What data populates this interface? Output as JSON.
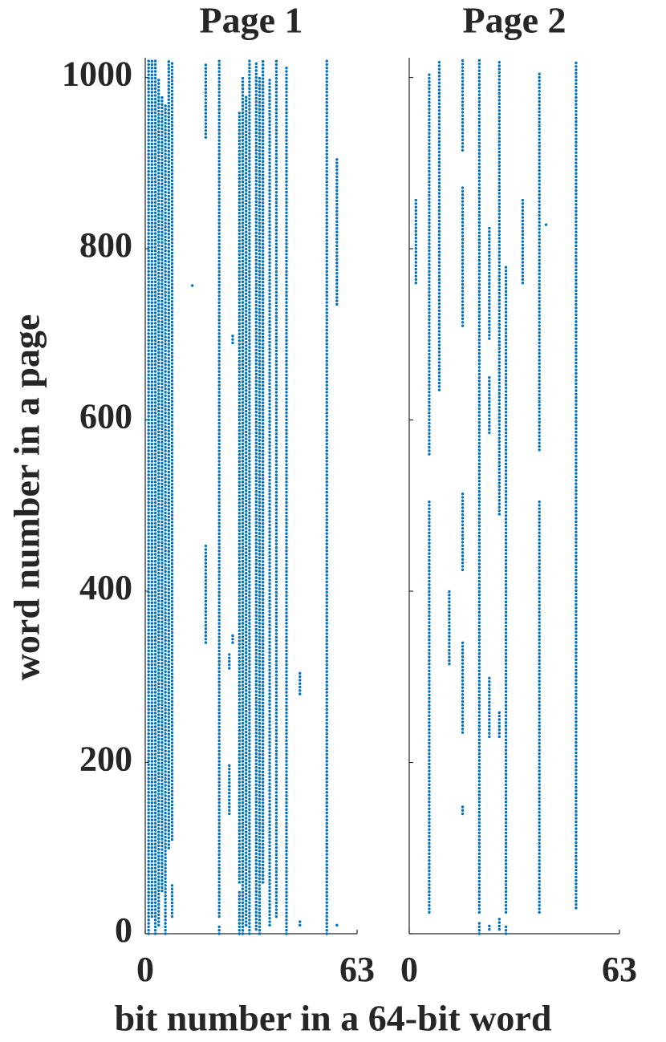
{
  "chart_data": [
    {
      "type": "scatter",
      "title": "Page 1",
      "ylabel": "word number in a page",
      "xlabel": "bit number in a 64-bit word",
      "color": "#0072bd",
      "xlim": [
        0,
        63
      ],
      "ylim": [
        0,
        1023
      ],
      "xticks": [
        0,
        63
      ],
      "yticks": [
        0,
        200,
        400,
        600,
        800,
        1000
      ],
      "ytick_labels": true,
      "columns": [
        {
          "bit": 1,
          "runs": [
            [
              0,
              1020
            ]
          ]
        },
        {
          "bit": 2,
          "runs": [
            [
              20,
              1020
            ]
          ]
        },
        {
          "bit": 3,
          "runs": [
            [
              0,
              1020
            ]
          ]
        },
        {
          "bit": 4,
          "runs": [
            [
              10,
              1000
            ]
          ]
        },
        {
          "bit": 5,
          "runs": [
            [
              50,
              980
            ]
          ]
        },
        {
          "bit": 6,
          "runs": [
            [
              0,
              970
            ]
          ]
        },
        {
          "bit": 7,
          "runs": [
            [
              100,
              1020
            ]
          ]
        },
        {
          "bit": 8,
          "runs": [
            [
              20,
              60
            ],
            [
              110,
              1020
            ]
          ]
        },
        {
          "bit": 14,
          "runs": [
            [
              757,
              757
            ]
          ]
        },
        {
          "bit": 18,
          "runs": [
            [
              340,
              455
            ],
            [
              930,
              1015
            ]
          ]
        },
        {
          "bit": 22,
          "runs": [
            [
              0,
              10
            ],
            [
              20,
              1020
            ]
          ]
        },
        {
          "bit": 25,
          "runs": [
            [
              140,
              200
            ],
            [
              310,
              330
            ]
          ]
        },
        {
          "bit": 26,
          "runs": [
            [
              340,
              350
            ],
            [
              690,
              700
            ]
          ]
        },
        {
          "bit": 28,
          "runs": [
            [
              0,
              50
            ],
            [
              60,
              960
            ]
          ]
        },
        {
          "bit": 29,
          "runs": [
            [
              0,
              1000
            ]
          ]
        },
        {
          "bit": 30,
          "runs": [
            [
              10,
              980
            ]
          ]
        },
        {
          "bit": 31,
          "runs": [
            [
              0,
              1020
            ]
          ]
        },
        {
          "bit": 33,
          "runs": [
            [
              5,
              1020
            ]
          ]
        },
        {
          "bit": 34,
          "runs": [
            [
              0,
              1000
            ]
          ]
        },
        {
          "bit": 35,
          "runs": [
            [
              60,
              1020
            ]
          ]
        },
        {
          "bit": 37,
          "runs": [
            [
              10,
              1000
            ]
          ]
        },
        {
          "bit": 39,
          "runs": [
            [
              20,
              1020
            ]
          ]
        },
        {
          "bit": 42,
          "runs": [
            [
              0,
              1015
            ]
          ]
        },
        {
          "bit": 46,
          "runs": [
            [
              10,
              15
            ],
            [
              280,
              305
            ]
          ]
        },
        {
          "bit": 54,
          "runs": [
            [
              0,
              1020
            ]
          ]
        },
        {
          "bit": 57,
          "runs": [
            [
              10,
              10
            ],
            [
              735,
              905
            ]
          ]
        }
      ]
    },
    {
      "type": "scatter",
      "title": "Page 2",
      "color": "#0072bd",
      "xlim": [
        0,
        63
      ],
      "ylim": [
        0,
        1023
      ],
      "xticks": [
        0,
        63
      ],
      "yticks": [
        0,
        200,
        400,
        600,
        800,
        1000
      ],
      "ytick_labels": false,
      "columns": [
        {
          "bit": 2,
          "runs": [
            [
              760,
              860
            ]
          ]
        },
        {
          "bit": 6,
          "runs": [
            [
              25,
              505
            ],
            [
              560,
              1005
            ]
          ]
        },
        {
          "bit": 9,
          "runs": [
            [
              635,
              1020
            ]
          ]
        },
        {
          "bit": 12,
          "runs": [
            [
              315,
              400
            ]
          ]
        },
        {
          "bit": 16,
          "runs": [
            [
              140,
              150
            ],
            [
              235,
              340
            ],
            [
              425,
              515
            ],
            [
              710,
              875
            ],
            [
              915,
              1020
            ]
          ]
        },
        {
          "bit": 21,
          "runs": [
            [
              0,
              15
            ],
            [
              25,
              1020
            ]
          ]
        },
        {
          "bit": 24,
          "runs": [
            [
              5,
              10
            ],
            [
              230,
              300
            ],
            [
              585,
              650
            ],
            [
              695,
              825
            ]
          ]
        },
        {
          "bit": 27,
          "runs": [
            [
              5,
              20
            ],
            [
              230,
              260
            ],
            [
              490,
              1020
            ]
          ]
        },
        {
          "bit": 29,
          "runs": [
            [
              0,
              10
            ],
            [
              25,
              780
            ]
          ]
        },
        {
          "bit": 34,
          "runs": [
            [
              760,
              860
            ]
          ]
        },
        {
          "bit": 39,
          "runs": [
            [
              25,
              505
            ],
            [
              565,
              1005
            ]
          ]
        },
        {
          "bit": 41,
          "runs": [
            [
              828,
              828
            ]
          ]
        },
        {
          "bit": 50,
          "runs": [
            [
              30,
              1020
            ]
          ]
        }
      ]
    }
  ]
}
